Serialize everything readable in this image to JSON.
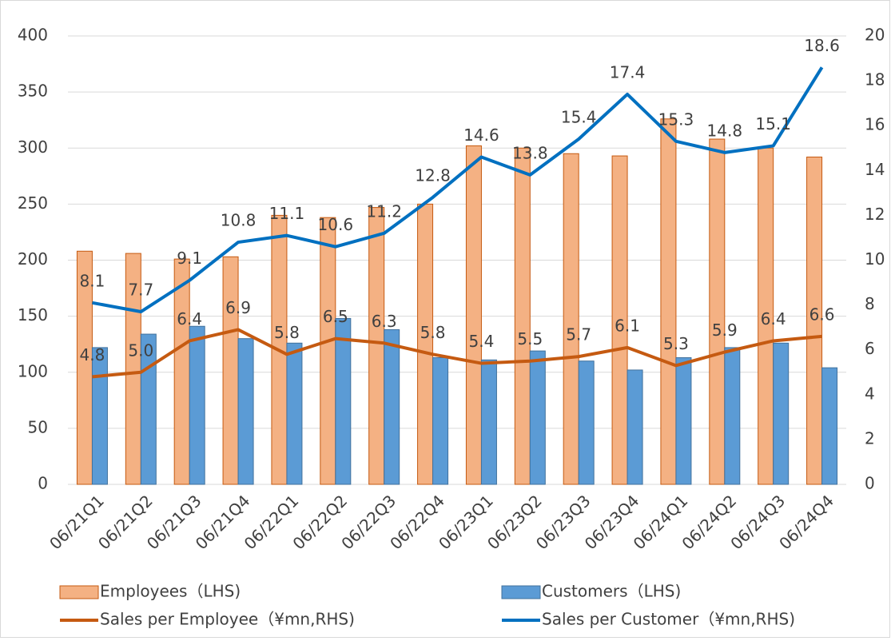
{
  "chart_data": {
    "type": "bar-line",
    "categories": [
      "06/21Q1",
      "06/21Q2",
      "06/21Q3",
      "06/21Q4",
      "06/22Q1",
      "06/22Q2",
      "06/22Q3",
      "06/22Q4",
      "06/23Q1",
      "06/23Q2",
      "06/23Q3",
      "06/23Q4",
      "06/24Q1",
      "06/24Q2",
      "06/24Q3",
      "06/24Q4"
    ],
    "series": [
      {
        "name": "Employees（LHS)",
        "type": "bar",
        "color": "#f4b183",
        "values": [
          208,
          206,
          201,
          203,
          240,
          238,
          247,
          250,
          302,
          300,
          295,
          293,
          326,
          308,
          300,
          292
        ]
      },
      {
        "name": "Customers（LHS)",
        "type": "bar",
        "color": "#5b9bd5",
        "values": [
          122,
          134,
          141,
          130,
          126,
          148,
          138,
          113,
          111,
          119,
          110,
          102,
          113,
          122,
          126,
          104
        ]
      },
      {
        "name": "Sales per Employee（¥mn,RHS)",
        "type": "line",
        "axis": "y2",
        "color": "#c55a11",
        "values": [
          4.8,
          5.0,
          6.4,
          6.9,
          5.8,
          6.5,
          6.3,
          5.8,
          5.4,
          5.5,
          5.7,
          6.1,
          5.3,
          5.9,
          6.4,
          6.6
        ],
        "value_labels": [
          "4.8",
          "5.0",
          "6.4",
          "6.9",
          "5.8",
          "6.5",
          "6.3",
          "5.8",
          "5.4",
          "5.5",
          "5.7",
          "6.1",
          "5.3",
          "5.9",
          "6.4",
          "6.6"
        ]
      },
      {
        "name": "Sales per Customer（¥mn,RHS)",
        "type": "line",
        "axis": "y2",
        "color": "#0070c0",
        "values": [
          8.1,
          7.7,
          9.1,
          10.8,
          11.1,
          10.6,
          11.2,
          12.8,
          14.6,
          13.8,
          15.4,
          17.4,
          15.3,
          14.8,
          15.1,
          18.6
        ],
        "value_labels": [
          "8.1",
          "7.7",
          "9.1",
          "10.8",
          "11.1",
          "10.6",
          "11.2",
          "12.8",
          "14.6",
          "13.8",
          "15.4",
          "17.4",
          "15.3",
          "14.8",
          "15.1",
          "18.6"
        ]
      }
    ],
    "ylim": [
      0,
      400
    ],
    "yticks": [
      0,
      50,
      100,
      150,
      200,
      250,
      300,
      350,
      400
    ],
    "y2lim": [
      0,
      20
    ],
    "y2ticks": [
      0,
      2,
      4,
      6,
      8,
      10,
      12,
      14,
      16,
      18,
      20
    ],
    "grid": true,
    "legend": "bottom"
  }
}
